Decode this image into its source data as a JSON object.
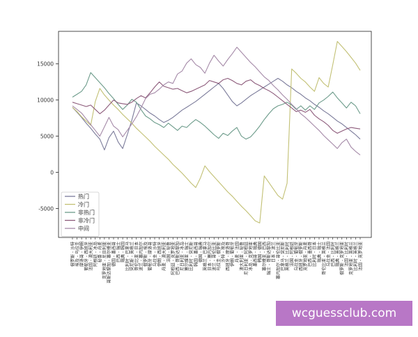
{
  "chart_data": {
    "type": "line",
    "categories": [
      "俄罗斯 - 沙特",
      "埃及 - 乌拉圭",
      "摩洛哥 - 伊朗",
      "葡萄牙 - 西班牙",
      "法国 - 澳大利亚",
      "阿根廷 - 冰岛",
      "秘鲁 - 丹麦",
      "克罗地亚 - 尼日利亚",
      "哥斯达黎加 - 塞尔维亚",
      "德国 - 墨西哥",
      "巴西 - 瑞士",
      "瑞典 - 韩国",
      "比利时 - 巴拿马",
      "突尼斯 - 英格兰",
      "哥伦比亚 - 日本",
      "波兰 - 塞内加尔",
      "俄罗斯 - 埃及",
      "葡萄牙 - 摩洛哥",
      "乌拉圭 - 沙特",
      "伊朗 - 西班牙",
      "丹麦 - 澳大利亚",
      "法国 - 秘鲁",
      "阿根廷 - 克罗地亚",
      "巴西 - 哥斯达黎加",
      "尼日利亚 - 冰岛",
      "塞尔维亚 - 瑞士",
      "比利时 - 突尼斯",
      "韩国 - 墨西哥",
      "德国 - 瑞典",
      "英格兰 - 巴拿马",
      "日本 - 塞内加尔",
      "波兰 - 哥伦比亚",
      "乌拉圭 - 俄罗斯",
      "沙特 - 埃及",
      "西班牙 - 摩洛哥",
      "伊朗 - 葡萄牙",
      "丹麦 - 法国",
      "澳大利亚 - 秘鲁",
      "尼日利亚 - 阿根廷",
      "冰岛 - 克罗地亚",
      "墨西哥 - 瑞典",
      "韩国 - 德国",
      "塞尔维亚 - 巴西",
      "瑞士 - 哥斯达黎加",
      "日本 - 波兰",
      "塞内加尔 - 哥伦比亚",
      "巴拿马 - 突尼斯",
      "英格兰 - 比利时",
      "法国 - 阿根廷",
      "乌拉圭 - 葡萄牙",
      "西班牙 - 俄罗斯",
      "克罗地亚 - 丹麦",
      "巴西 - 墨西哥",
      "比利时 - 日本",
      "瑞典 - 瑞士",
      "哥伦比亚 - 英格兰",
      "乌拉圭 - 法国",
      "巴西 - 比利时",
      "瑞典 - 英格兰",
      "俄罗斯 - 克罗地亚",
      "法国 - 比利时",
      "克罗地亚 - 英格兰",
      "比利时 - 英格兰",
      "法国 - 克罗地亚"
    ],
    "ylim": [
      -9000,
      19500
    ],
    "yticks": [
      -5000,
      0,
      5000,
      10000,
      15000
    ],
    "legend_position": "lower-left",
    "series": [
      {
        "name": "热门",
        "color": "#7b7b9a",
        "values": [
          9000,
          8300,
          7600,
          6800,
          6100,
          5300,
          4600,
          3100,
          4800,
          5700,
          4200,
          3300,
          5200,
          7200,
          9600,
          9200,
          8700,
          8200,
          7800,
          7300,
          6900,
          7200,
          7600,
          8100,
          8600,
          9000,
          9400,
          9800,
          10300,
          10800,
          11300,
          11800,
          12300,
          11600,
          10700,
          9800,
          9200,
          9600,
          10100,
          10600,
          11000,
          11400,
          11800,
          12200,
          12600,
          13000,
          12600,
          12100,
          11700,
          11200,
          10800,
          10300,
          9900,
          9400,
          9000,
          8500,
          8100,
          7600,
          7100,
          6700,
          6200,
          5700,
          5200,
          4600
        ]
      },
      {
        "name": "冷门",
        "color": "#c2c074",
        "values": [
          9000,
          8400,
          7700,
          7100,
          6500,
          9800,
          11600,
          10700,
          10000,
          9300,
          8700,
          8000,
          7400,
          6800,
          6100,
          5500,
          4900,
          4300,
          3600,
          3000,
          2400,
          1800,
          1100,
          500,
          -100,
          -800,
          -1500,
          -2100,
          -800,
          900,
          100,
          -600,
          -1300,
          -2000,
          -2700,
          -3300,
          -4000,
          -4700,
          -5300,
          -6000,
          -6700,
          -7000,
          -500,
          -1400,
          -2300,
          -3200,
          -3700,
          -1500,
          14300,
          13700,
          13000,
          12500,
          11800,
          11200,
          13100,
          12300,
          11800,
          14900,
          18100,
          17400,
          16700,
          15900,
          15100,
          14100
        ]
      },
      {
        "name": "非热门",
        "color": "#6c9b8a",
        "values": [
          10400,
          10800,
          11200,
          12100,
          13800,
          13100,
          12400,
          11700,
          10900,
          10200,
          9400,
          8700,
          9300,
          10100,
          9700,
          8700,
          7800,
          7400,
          6900,
          6600,
          6200,
          6800,
          6300,
          5800,
          6400,
          6200,
          6800,
          7300,
          6900,
          6400,
          5800,
          5200,
          4700,
          5400,
          5100,
          5700,
          6200,
          5000,
          4600,
          4900,
          5600,
          6400,
          7300,
          8100,
          8800,
          9200,
          9400,
          9700,
          9300,
          8700,
          9200,
          8600,
          9200,
          8700,
          9600,
          10000,
          10500,
          11100,
          10300,
          9600,
          8900,
          9700,
          9200,
          8100
        ]
      },
      {
        "name": "非冷门",
        "color": "#8c5a7a",
        "values": [
          9700,
          9500,
          9300,
          9100,
          9300,
          8700,
          8100,
          8600,
          9300,
          10000,
          9600,
          9500,
          9400,
          9700,
          10200,
          10600,
          10300,
          11000,
          11800,
          12500,
          11900,
          11700,
          11500,
          11600,
          11300,
          11000,
          11200,
          11500,
          11800,
          12100,
          12700,
          12500,
          12300,
          12800,
          13000,
          12700,
          12300,
          12100,
          12600,
          12800,
          12300,
          12000,
          11600,
          11300,
          10900,
          10400,
          9900,
          9400,
          8900,
          8400,
          8600,
          8300,
          8700,
          7900,
          7400,
          7000,
          6500,
          5800,
          5400,
          5700,
          6000,
          6200,
          6100,
          6000
        ]
      },
      {
        "name": "中间",
        "color": "#a58aa8",
        "values": [
          9200,
          8700,
          8200,
          7400,
          6600,
          5800,
          5000,
          6300,
          7600,
          6400,
          5900,
          4900,
          5800,
          6700,
          7700,
          8900,
          10200,
          10800,
          11000,
          11500,
          12100,
          12500,
          12300,
          13600,
          14000,
          15100,
          15700,
          14900,
          14500,
          13700,
          15100,
          16200,
          15400,
          14700,
          15600,
          16400,
          17300,
          16600,
          15900,
          15200,
          14600,
          13900,
          13200,
          12700,
          12000,
          11400,
          10700,
          10100,
          9400,
          8800,
          8100,
          7600,
          7000,
          6400,
          5800,
          5100,
          4500,
          3900,
          3300,
          4100,
          4600,
          3500,
          2900,
          2400
        ]
      }
    ]
  }
}
